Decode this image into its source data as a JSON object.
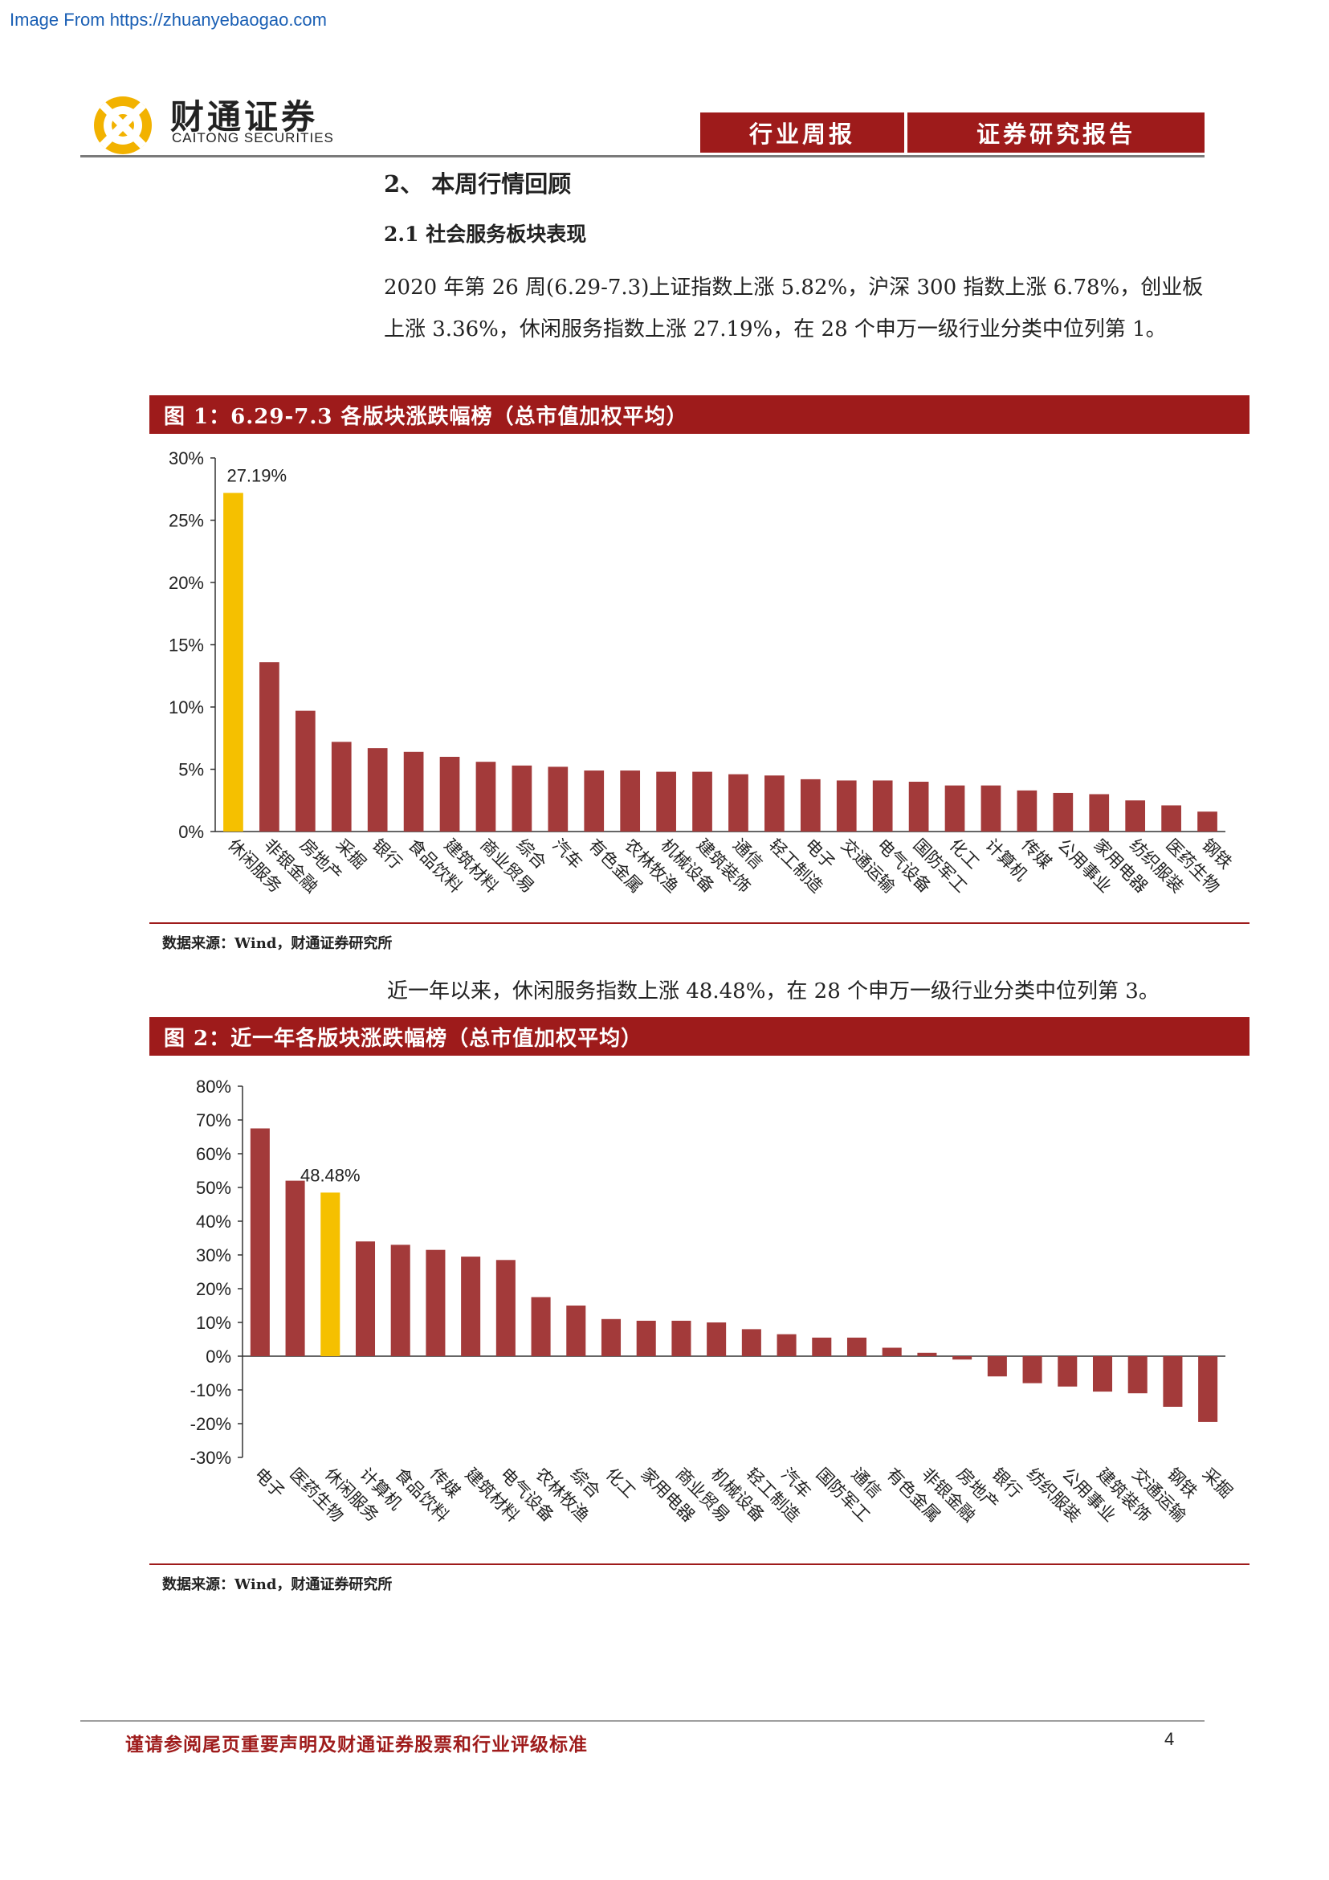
{
  "watermark": "Image From https://zhuanyebaogao.com",
  "header": {
    "company_cn": "财通证券",
    "company_en": "CAITONG SECURITIES",
    "tab1": "行业周报",
    "tab2": "证券研究报告"
  },
  "section": {
    "heading": "2、 本周行情回顾",
    "subheading": "2.1  社会服务板块表现",
    "para1": "2020 年第 26 周(6.29-7.3)上证指数上涨 5.82%，沪深 300 指数上涨 6.78%，创业板上涨 3.36%，休闲服务指数上涨 27.19%，在 28 个申万一级行业分类中位列第 1。",
    "para2": "近一年以来，休闲服务指数上涨 48.48%，在 28 个申万一级行业分类中位列第 3。"
  },
  "figures": {
    "fig1_title": "图 1：6.29-7.3 各版块涨跌幅榜（总市值加权平均）",
    "fig1_source": "数据来源：Wind，财通证券研究所",
    "fig2_title": "图 2：近一年各版块涨跌幅榜（总市值加权平均）",
    "fig2_source": "数据来源：Wind，财通证券研究所"
  },
  "colors": {
    "bar": "#a33a3a",
    "highlight": "#f5c000",
    "brand": "#9e1b1b"
  },
  "chart_data": [
    {
      "type": "bar",
      "categories": [
        "休闲服务",
        "非银金融",
        "房地产",
        "采掘",
        "银行",
        "食品饮料",
        "建筑材料",
        "商业贸易",
        "综合",
        "汽车",
        "有色金属",
        "农林牧渔",
        "机械设备",
        "建筑装饰",
        "通信",
        "轻工制造",
        "电子",
        "交通运输",
        "电气设备",
        "国防军工",
        "化工",
        "计算机",
        "传媒",
        "公用事业",
        "家用电器",
        "纺织服装",
        "医药生物",
        "钢铁"
      ],
      "values": [
        27.19,
        13.6,
        9.7,
        7.2,
        6.7,
        6.4,
        6.0,
        5.6,
        5.3,
        5.2,
        4.9,
        4.9,
        4.8,
        4.8,
        4.6,
        4.5,
        4.2,
        4.1,
        4.1,
        4.0,
        3.7,
        3.7,
        3.3,
        3.1,
        3.0,
        2.5,
        2.1,
        1.6
      ],
      "highlight_index": 0,
      "data_label": "27.19%",
      "yticks": [
        "0%",
        "5%",
        "10%",
        "15%",
        "20%",
        "25%",
        "30%"
      ],
      "ylim": [
        0,
        30
      ]
    },
    {
      "type": "bar",
      "categories": [
        "电子",
        "医药生物",
        "休闲服务",
        "计算机",
        "食品饮料",
        "传媒",
        "建筑材料",
        "电气设备",
        "农林牧渔",
        "综合",
        "化工",
        "家用电器",
        "商业贸易",
        "机械设备",
        "轻工制造",
        "汽车",
        "国防军工",
        "通信",
        "有色金属",
        "非银金融",
        "房地产",
        "银行",
        "纺织服装",
        "公用事业",
        "建筑装饰",
        "交通运输",
        "钢铁",
        "采掘"
      ],
      "values": [
        67.5,
        52.0,
        48.48,
        34.0,
        33.0,
        31.5,
        29.5,
        28.5,
        17.5,
        15.0,
        11.0,
        10.5,
        10.5,
        10.0,
        8.0,
        6.5,
        5.5,
        5.5,
        2.5,
        1.0,
        -1.0,
        -6.0,
        -8.0,
        -9.0,
        -10.5,
        -11.0,
        -15.0,
        -19.5
      ],
      "highlight_index": 2,
      "data_label": "48.48%",
      "yticks": [
        "-30%",
        "-20%",
        "-10%",
        "0%",
        "10%",
        "20%",
        "30%",
        "40%",
        "50%",
        "60%",
        "70%",
        "80%"
      ],
      "ylim": [
        -30,
        80
      ]
    }
  ],
  "footer": {
    "disclaimer": "谨请参阅尾页重要声明及财通证券股票和行业评级标准",
    "page_number": "4"
  }
}
